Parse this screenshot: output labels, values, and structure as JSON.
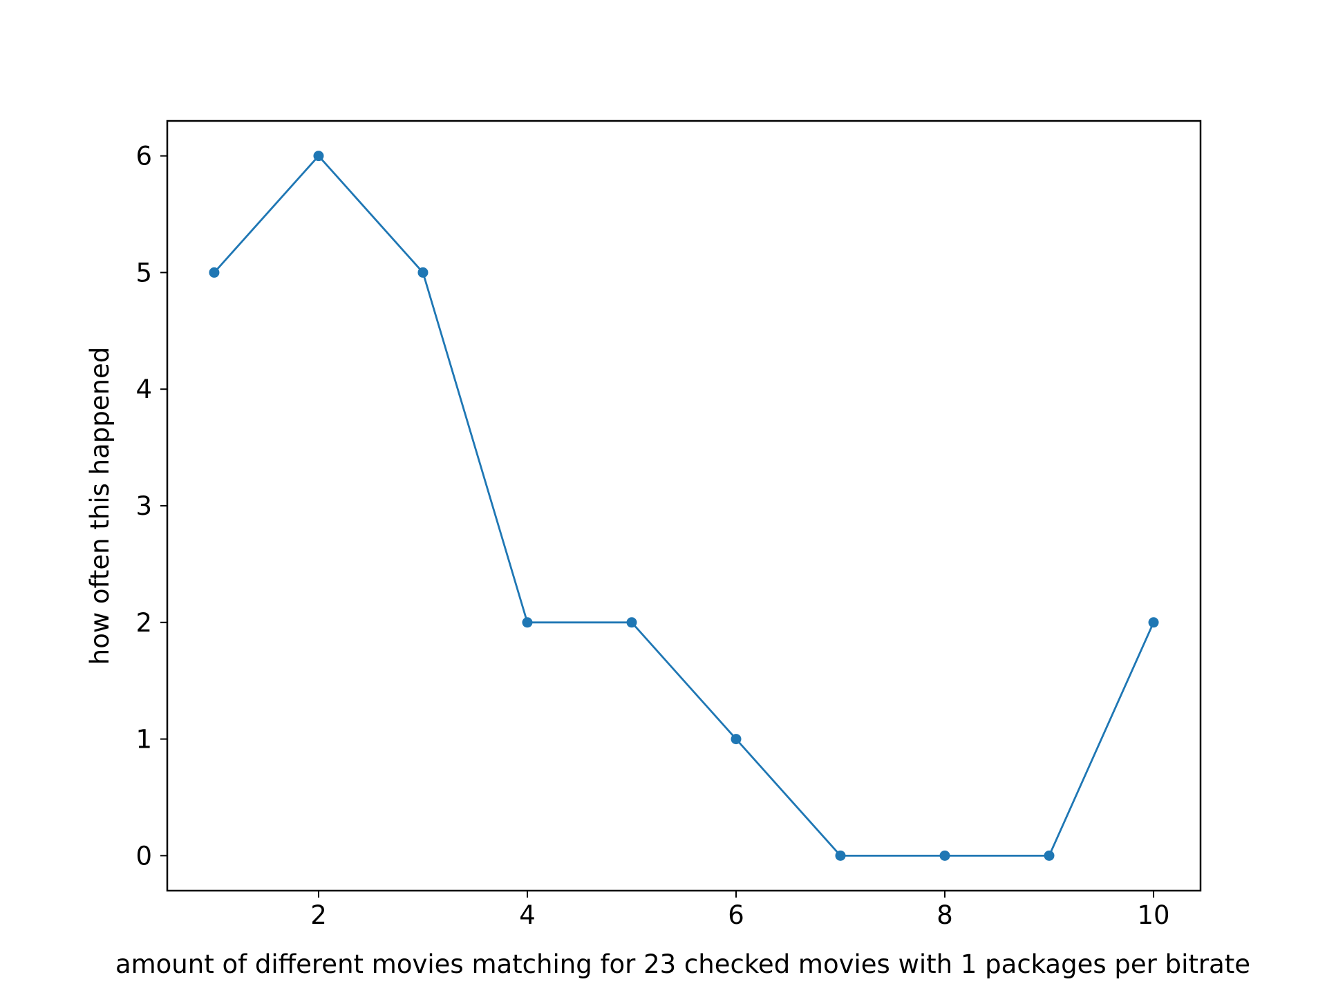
{
  "chart_data": {
    "type": "line",
    "title": "",
    "xlabel": "amount of different movies matching for 23 checked movies with 1 packages per bitrate",
    "ylabel": "how often this happened",
    "x": [
      1,
      2,
      3,
      4,
      5,
      6,
      7,
      8,
      9,
      10
    ],
    "series": [
      {
        "values": [
          5,
          6,
          5,
          2,
          2,
          1,
          0,
          0,
          0,
          2
        ],
        "color": "#1f77b4",
        "marker": "circle"
      }
    ],
    "xlim": [
      0.55,
      10.45
    ],
    "ylim": [
      -0.3,
      6.3
    ],
    "xticks": [
      2,
      4,
      6,
      8,
      10
    ],
    "yticks": [
      0,
      1,
      2,
      3,
      4,
      5,
      6
    ],
    "grid": false,
    "legend": "none"
  }
}
